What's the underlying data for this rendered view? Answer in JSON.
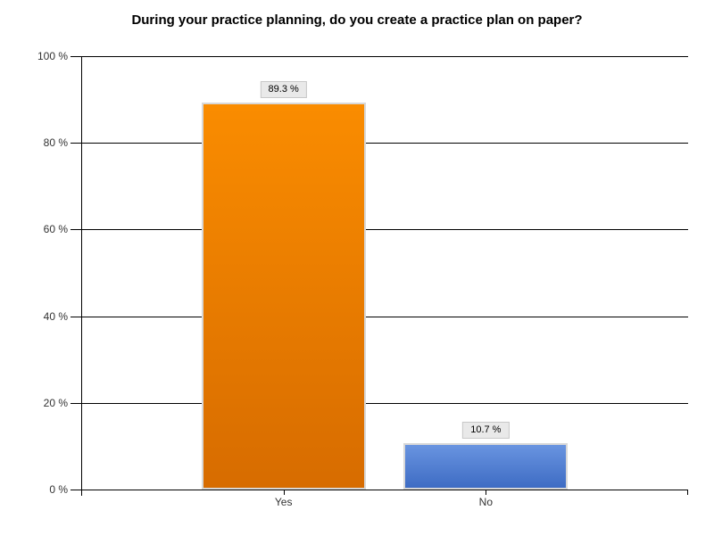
{
  "chart_data": {
    "type": "bar",
    "title": "During your practice planning, do you create a practice plan on paper?",
    "categories": [
      "Yes",
      "No"
    ],
    "values": [
      89.3,
      10.7
    ],
    "value_labels": [
      "89.3 %",
      "10.7 %"
    ],
    "ylim": [
      0,
      100
    ],
    "yticks": [
      0,
      20,
      40,
      60,
      80,
      100
    ],
    "ytick_labels": [
      "0 %",
      "20 %",
      "40 %",
      "60 %",
      "80 %",
      "100 %"
    ],
    "xlabel": "",
    "ylabel": "",
    "grid": "horizontal",
    "legend": "none",
    "background": "#ffffff",
    "axis_color": "#000000",
    "bar_border_color": "#d8d8d8",
    "value_label_bg": "#e9e9e9",
    "value_label_border": "#c8c8c8",
    "bar_colors": [
      {
        "top": "#fa8c00",
        "bottom": "#d76c00"
      },
      {
        "top": "#6994e0",
        "bottom": "#3e6cc4"
      }
    ]
  }
}
